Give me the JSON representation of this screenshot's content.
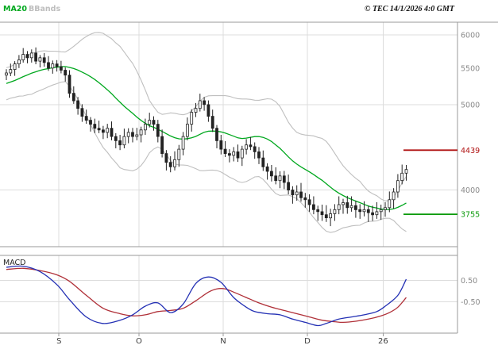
{
  "header": {
    "ma_label": "MA20",
    "bbands_label": "BBands",
    "copyright": "© TEC 14/1/2026 4:0 GMT"
  },
  "colors": {
    "ma20": "#00A81E",
    "bbands": "#BFBFBF",
    "candle": "#222222",
    "macd_line": "#2330B4",
    "macd_signal": "#B03038",
    "grid": "#DCDCDC",
    "border": "#9A9A9A",
    "axis_text": "#8A8A8A",
    "month_text": "#3C3C3C",
    "resistance": "#B01212",
    "support": "#0A9A0A"
  },
  "chart_data": {
    "type": "candlestick",
    "title": "",
    "price_panel": {
      "scale": {
        "min": 3450,
        "max": 6200,
        "log": true
      },
      "gridline_prices": [
        6000,
        5000,
        4000
      ],
      "ylabels": [
        {
          "text": "6000",
          "value": 6000
        },
        {
          "text": "5500",
          "value": 5500
        },
        {
          "text": "5000",
          "value": 5000
        },
        {
          "text": "4000",
          "value": 4000
        }
      ],
      "levels": [
        {
          "label": "4439",
          "price": 4439,
          "kind": "resistance"
        },
        {
          "label": "3755",
          "price": 3755,
          "kind": "support"
        }
      ],
      "indicators": {
        "ma_window": 20,
        "bb_mult": 2
      },
      "pre_closes": [
        5060,
        5090,
        5120,
        5100,
        5150,
        5180,
        5210,
        5200,
        5250,
        5290,
        5280,
        5320,
        5350,
        5330,
        5360,
        5400,
        5380,
        5410,
        5400,
        5420
      ],
      "ohlc": {
        "open": [
          5400,
          5430,
          5480,
          5560,
          5620,
          5700,
          5650,
          5720,
          5600,
          5650,
          5580,
          5500,
          5560,
          5520,
          5470,
          5400,
          5150,
          5050,
          4950,
          4850,
          4800,
          4750,
          4700,
          4680,
          4650,
          4700,
          4600,
          4550,
          4500,
          4600,
          4650,
          4600,
          4620,
          4680,
          4750,
          4800,
          4750,
          4600,
          4400,
          4300,
          4250,
          4330,
          4450,
          4600,
          4750,
          4900,
          4950,
          5050,
          5000,
          4850,
          4700,
          4550,
          4450,
          4400,
          4380,
          4420,
          4350,
          4450,
          4500,
          4480,
          4420,
          4350,
          4250,
          4200,
          4150,
          4100,
          4150,
          4080,
          4000,
          3950,
          3980,
          3920,
          3900,
          3850,
          3800,
          3780,
          3750,
          3720,
          3760,
          3800,
          3850,
          3870,
          3820,
          3840,
          3800,
          3780,
          3800,
          3770,
          3750,
          3780,
          3800,
          3820,
          3900,
          3980,
          4100,
          4180
        ],
        "high": [
          5485,
          5565,
          5600,
          5690,
          5795,
          5750,
          5775,
          5805,
          5690,
          5720,
          5675,
          5610,
          5615,
          5605,
          5510,
          5470,
          5245,
          5100,
          5005,
          4935,
          4840,
          4820,
          4795,
          4730,
          4755,
          4785,
          4640,
          4620,
          4695,
          4700,
          4705,
          4705,
          4720,
          4820,
          4895,
          4850,
          4805,
          4685,
          4440,
          4370,
          4425,
          4500,
          4655,
          4835,
          4940,
          5020,
          5145,
          5100,
          5055,
          4935,
          4740,
          4620,
          4545,
          4450,
          4475,
          4505,
          4490,
          4570,
          4595,
          4530,
          4475,
          4435,
          4290,
          4270,
          4245,
          4200,
          4205,
          4165,
          4040,
          4050,
          4075,
          3970,
          3955,
          3935,
          3840,
          3850,
          3845,
          3810,
          3855,
          3935,
          3910,
          3940,
          3935,
          3890,
          3855,
          3885,
          3840,
          3840,
          3875,
          3850,
          3875,
          3985,
          4020,
          4170,
          4275,
          4270
        ],
        "low": [
          5330,
          5385,
          5390,
          5500,
          5580,
          5570,
          5580,
          5555,
          5510,
          5520,
          5460,
          5420,
          5450,
          5425,
          5310,
          5090,
          5010,
          4870,
          4780,
          4755,
          4660,
          4640,
          4640,
          4570,
          4580,
          4555,
          4460,
          4440,
          4460,
          4520,
          4530,
          4555,
          4530,
          4620,
          4710,
          4670,
          4530,
          4355,
          4210,
          4190,
          4210,
          4250,
          4380,
          4555,
          4660,
          4840,
          4910,
          4920,
          4780,
          4655,
          4460,
          4390,
          4360,
          4300,
          4310,
          4305,
          4260,
          4390,
          4440,
          4340,
          4280,
          4205,
          4110,
          4090,
          4060,
          4020,
          4010,
          3955,
          3860,
          3890,
          3880,
          3820,
          3780,
          3755,
          3690,
          3690,
          3680,
          3640,
          3690,
          3755,
          3760,
          3760,
          3780,
          3720,
          3710,
          3735,
          3680,
          3690,
          3710,
          3700,
          3730,
          3775,
          3810,
          3920,
          4060,
          4100
        ],
        "close": [
          5430,
          5480,
          5560,
          5620,
          5700,
          5650,
          5720,
          5600,
          5650,
          5580,
          5500,
          5560,
          5520,
          5470,
          5400,
          5150,
          5050,
          4950,
          4850,
          4800,
          4750,
          4700,
          4680,
          4650,
          4700,
          4600,
          4550,
          4500,
          4600,
          4650,
          4600,
          4620,
          4680,
          4750,
          4800,
          4750,
          4600,
          4400,
          4300,
          4250,
          4330,
          4450,
          4600,
          4750,
          4900,
          4950,
          5050,
          5000,
          4850,
          4700,
          4550,
          4450,
          4400,
          4380,
          4420,
          4350,
          4450,
          4500,
          4480,
          4420,
          4350,
          4250,
          4200,
          4150,
          4100,
          4150,
          4080,
          4000,
          3950,
          3980,
          3920,
          3900,
          3850,
          3800,
          3780,
          3750,
          3720,
          3760,
          3800,
          3850,
          3870,
          3820,
          3840,
          3800,
          3780,
          3800,
          3770,
          3750,
          3780,
          3800,
          3820,
          3900,
          3980,
          4100,
          4180,
          4220
        ]
      }
    },
    "macd_panel": {
      "label": "MACD",
      "scale": {
        "min": -1.95,
        "max": 1.65
      },
      "gridline_values": [
        0.5,
        -0.5
      ],
      "ylabels": [
        {
          "text": "0.50",
          "value": 0.5
        },
        {
          "text": "-0.50",
          "value": -0.5
        }
      ],
      "line_keypoints": [
        [
          0,
          1.1
        ],
        [
          4,
          1.15
        ],
        [
          8,
          0.9
        ],
        [
          12,
          0.3
        ],
        [
          15,
          -0.4
        ],
        [
          19,
          -1.2
        ],
        [
          23,
          -1.5
        ],
        [
          27,
          -1.35
        ],
        [
          30,
          -1.1
        ],
        [
          33,
          -0.7
        ],
        [
          36,
          -0.55
        ],
        [
          39,
          -1.0
        ],
        [
          42,
          -0.6
        ],
        [
          45,
          0.35
        ],
        [
          48,
          0.65
        ],
        [
          51,
          0.4
        ],
        [
          54,
          -0.3
        ],
        [
          57,
          -0.75
        ],
        [
          59,
          -0.95
        ],
        [
          62,
          -1.05
        ],
        [
          65,
          -1.1
        ],
        [
          68,
          -1.3
        ],
        [
          71,
          -1.45
        ],
        [
          74,
          -1.6
        ],
        [
          76,
          -1.5
        ],
        [
          79,
          -1.3
        ],
        [
          82,
          -1.2
        ],
        [
          85,
          -1.1
        ],
        [
          88,
          -0.95
        ],
        [
          90,
          -0.7
        ],
        [
          93,
          -0.2
        ],
        [
          95,
          0.55
        ]
      ],
      "signal_keypoints": [
        [
          0,
          1.0
        ],
        [
          4,
          1.05
        ],
        [
          8,
          0.95
        ],
        [
          12,
          0.75
        ],
        [
          15,
          0.45
        ],
        [
          19,
          -0.2
        ],
        [
          23,
          -0.8
        ],
        [
          27,
          -1.05
        ],
        [
          30,
          -1.15
        ],
        [
          33,
          -1.1
        ],
        [
          36,
          -0.95
        ],
        [
          39,
          -0.9
        ],
        [
          42,
          -0.8
        ],
        [
          45,
          -0.45
        ],
        [
          48,
          -0.05
        ],
        [
          50,
          0.1
        ],
        [
          52,
          0.1
        ],
        [
          54,
          -0.05
        ],
        [
          57,
          -0.3
        ],
        [
          60,
          -0.55
        ],
        [
          63,
          -0.75
        ],
        [
          66,
          -0.9
        ],
        [
          69,
          -1.05
        ],
        [
          72,
          -1.2
        ],
        [
          75,
          -1.35
        ],
        [
          78,
          -1.42
        ],
        [
          80,
          -1.45
        ],
        [
          83,
          -1.4
        ],
        [
          86,
          -1.3
        ],
        [
          89,
          -1.15
        ],
        [
          91,
          -1.0
        ],
        [
          93,
          -0.75
        ],
        [
          95,
          -0.3
        ]
      ]
    },
    "xaxis": {
      "labels": [
        {
          "text": "S",
          "index": 13
        },
        {
          "text": "O",
          "index": 32
        },
        {
          "text": "N",
          "index": 52
        },
        {
          "text": "D",
          "index": 72
        },
        {
          "text": "26",
          "index": 90
        }
      ]
    }
  }
}
